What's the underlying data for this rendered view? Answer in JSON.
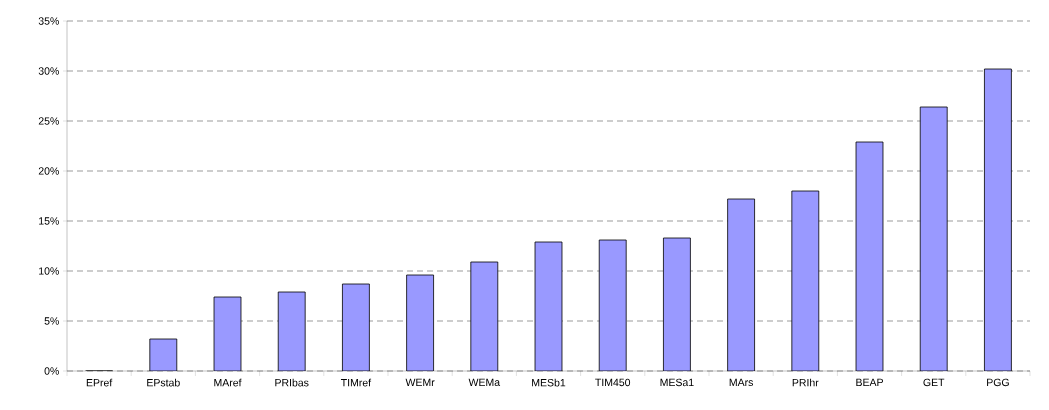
{
  "chart_data": {
    "type": "bar",
    "categories": [
      "EPref",
      "EPstab",
      "MAref",
      "PRIbas",
      "TIMref",
      "WEMr",
      "WEMa",
      "MESb1",
      "TIM450",
      "MESa1",
      "MArs",
      "PRIhr",
      "BEAP",
      "GET",
      "PGG"
    ],
    "values": [
      0,
      3.2,
      7.4,
      7.9,
      8.7,
      9.6,
      10.9,
      12.9,
      13.1,
      13.3,
      17.2,
      18.0,
      22.9,
      26.4,
      30.2
    ],
    "color": "#9999ff",
    "ylim": [
      0,
      35
    ],
    "yticks": [
      {
        "value": 0,
        "label": "0%"
      },
      {
        "value": 5,
        "label": "5%"
      },
      {
        "value": 10,
        "label": "10%"
      },
      {
        "value": 15,
        "label": "15%"
      },
      {
        "value": 20,
        "label": "20%"
      },
      {
        "value": 25,
        "label": "25%"
      },
      {
        "value": 30,
        "label": "30%"
      },
      {
        "value": 35,
        "label": "35%"
      }
    ],
    "grid": "y"
  }
}
